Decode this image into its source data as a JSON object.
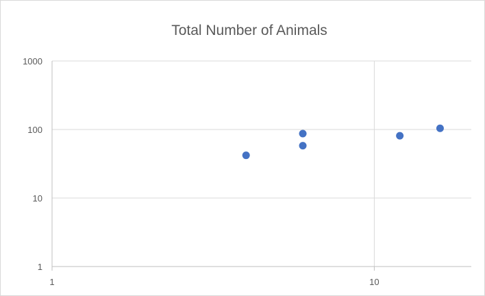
{
  "chart_data": {
    "type": "scatter",
    "title": "Total Number of Animals",
    "xlabel": "",
    "ylabel": "",
    "x_scale": "log",
    "y_scale": "log",
    "xlim": [
      1,
      20
    ],
    "ylim": [
      1,
      1000
    ],
    "x_ticks": [
      {
        "value": 1,
        "label": "1"
      },
      {
        "value": 10,
        "label": "10"
      }
    ],
    "y_ticks": [
      {
        "value": 1,
        "label": "1"
      },
      {
        "value": 10,
        "label": "10"
      },
      {
        "value": 100,
        "label": "100"
      },
      {
        "value": 1000,
        "label": "1000"
      }
    ],
    "grid": true,
    "legend": "none",
    "marker_color": "#4472c4",
    "series": [
      {
        "points": [
          {
            "x": 4,
            "y": 42
          },
          {
            "x": 6,
            "y": 87
          },
          {
            "x": 6,
            "y": 58
          },
          {
            "x": 12,
            "y": 81
          },
          {
            "x": 16,
            "y": 104
          }
        ]
      }
    ]
  }
}
